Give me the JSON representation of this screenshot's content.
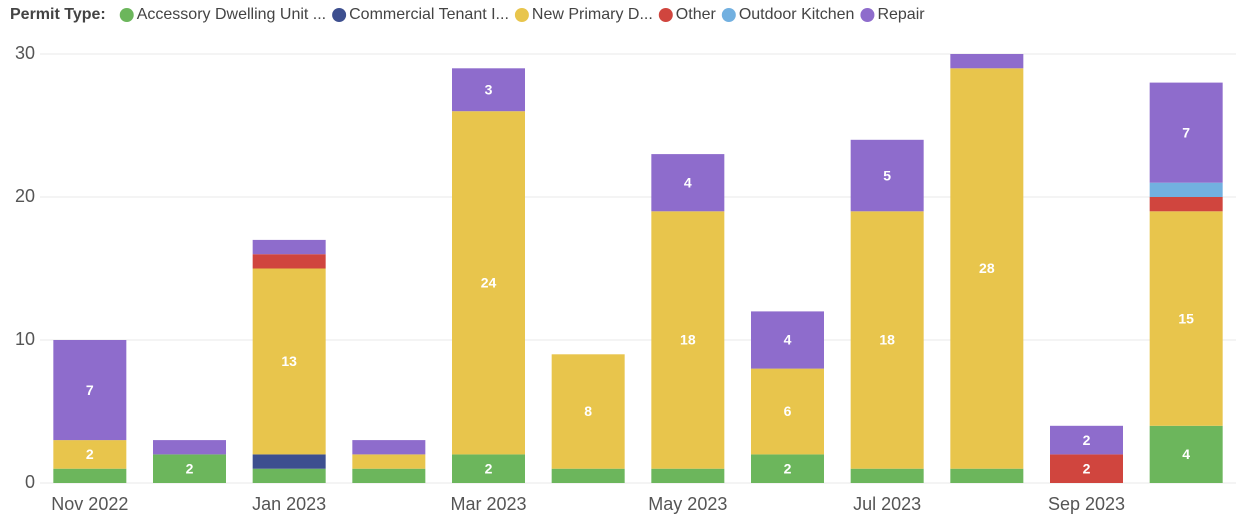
{
  "chart_data": {
    "type": "stacked_bar",
    "legend_title": "Permit Type:",
    "categories": [
      "Nov 2022",
      null,
      "Jan 2023",
      null,
      "Mar 2023",
      null,
      "May 2023",
      null,
      "Jul 2023",
      null,
      "Sep 2023",
      null
    ],
    "series": [
      {
        "name": "Accessory Dwelling Unit ...",
        "color": "#6cb65c",
        "values": [
          1,
          2,
          1,
          1,
          2,
          1,
          1,
          2,
          1,
          1,
          null,
          4
        ]
      },
      {
        "name": "Commercial Tenant I...",
        "color": "#3d4f8f",
        "values": [
          null,
          null,
          1,
          null,
          null,
          null,
          null,
          null,
          null,
          null,
          null,
          null
        ]
      },
      {
        "name": "New Primary D...",
        "color": "#e8c54c",
        "values": [
          2,
          null,
          13,
          1,
          24,
          8,
          18,
          6,
          18,
          28,
          null,
          15
        ]
      },
      {
        "name": "Other",
        "color": "#d0453e",
        "values": [
          null,
          null,
          1,
          null,
          null,
          null,
          null,
          null,
          null,
          null,
          2,
          1
        ]
      },
      {
        "name": "Outdoor Kitchen",
        "color": "#72b0e0",
        "values": [
          null,
          null,
          null,
          null,
          null,
          null,
          null,
          null,
          null,
          null,
          null,
          1
        ]
      },
      {
        "name": "Repair",
        "color": "#8e6ccc",
        "values": [
          7,
          1,
          1,
          1,
          3,
          null,
          4,
          4,
          5,
          1,
          2,
          7
        ]
      }
    ],
    "ylim": [
      0,
      30
    ],
    "yticks": [
      0,
      10,
      20,
      30
    ],
    "grid": true,
    "legend": "top-left"
  }
}
